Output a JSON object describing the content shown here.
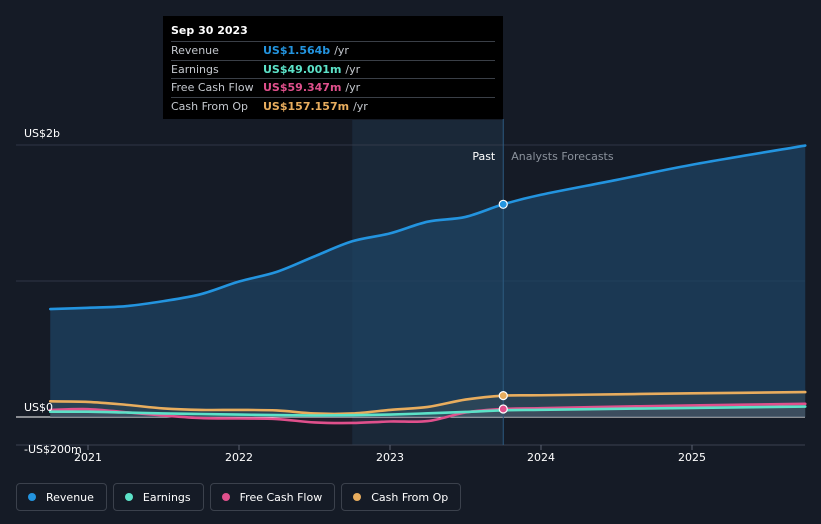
{
  "tooltip": {
    "date": "Sep 30 2023",
    "rows": [
      {
        "label": "Revenue",
        "value": "US$1.564b",
        "unit": "/yr",
        "color": "#2394df"
      },
      {
        "label": "Earnings",
        "value": "US$49.001m",
        "unit": "/yr",
        "color": "#5ce2c8"
      },
      {
        "label": "Free Cash Flow",
        "value": "US$59.347m",
        "unit": "/yr",
        "color": "#e0508c"
      },
      {
        "label": "Cash From Op",
        "value": "US$157.157m",
        "unit": "/yr",
        "color": "#e8ad5e"
      }
    ]
  },
  "regions": {
    "past": "Past",
    "forecast": "Analysts Forecasts"
  },
  "legend": [
    {
      "label": "Revenue",
      "color": "#2394df"
    },
    {
      "label": "Earnings",
      "color": "#5ce2c8"
    },
    {
      "label": "Free Cash Flow",
      "color": "#e0508c"
    },
    {
      "label": "Cash From Op",
      "color": "#e8ad5e"
    }
  ],
  "chart_data": {
    "type": "line",
    "ylim": [
      -200,
      2000
    ],
    "y_ticks": [
      {
        "value": 2000,
        "label": "US$2b"
      },
      {
        "value": 0,
        "label": "US$0"
      },
      {
        "value": -200,
        "label": "-US$200m"
      }
    ],
    "x_ticks": [
      {
        "value": 2021,
        "label": "2021"
      },
      {
        "value": 2022,
        "label": "2022"
      },
      {
        "value": 2023,
        "label": "2023"
      },
      {
        "value": 2024,
        "label": "2024"
      },
      {
        "value": 2025,
        "label": "2025"
      }
    ],
    "xlim": [
      2020.5,
      2025.75
    ],
    "past_region_start": 2022.75,
    "divider": 2023.75,
    "series": [
      {
        "name": "Revenue",
        "color": "#2394df",
        "points": [
          [
            2020.75,
            794
          ],
          [
            2021.0,
            803
          ],
          [
            2021.25,
            815
          ],
          [
            2021.5,
            852
          ],
          [
            2021.75,
            904
          ],
          [
            2022.0,
            996
          ],
          [
            2022.25,
            1067
          ],
          [
            2022.5,
            1181
          ],
          [
            2022.75,
            1292
          ],
          [
            2023.0,
            1350
          ],
          [
            2023.25,
            1436
          ],
          [
            2023.5,
            1471
          ],
          [
            2023.75,
            1564
          ],
          [
            2024.0,
            1634
          ],
          [
            2024.5,
            1743
          ],
          [
            2025.0,
            1855
          ],
          [
            2025.75,
            1996
          ]
        ]
      },
      {
        "name": "Earnings",
        "color": "#5ce2c8",
        "points": [
          [
            2020.75,
            39
          ],
          [
            2021.0,
            39
          ],
          [
            2021.25,
            33
          ],
          [
            2021.5,
            26
          ],
          [
            2021.75,
            22
          ],
          [
            2022.0,
            18
          ],
          [
            2022.25,
            14
          ],
          [
            2022.5,
            11
          ],
          [
            2022.75,
            13
          ],
          [
            2023.0,
            18
          ],
          [
            2023.25,
            27
          ],
          [
            2023.5,
            37
          ],
          [
            2023.75,
            49
          ],
          [
            2024.0,
            53
          ],
          [
            2024.5,
            60
          ],
          [
            2025.0,
            67
          ],
          [
            2025.75,
            77
          ]
        ]
      },
      {
        "name": "Free Cash Flow",
        "color": "#e0508c",
        "points": [
          [
            2020.75,
            52
          ],
          [
            2021.0,
            58
          ],
          [
            2021.25,
            35
          ],
          [
            2021.5,
            11
          ],
          [
            2021.75,
            -8
          ],
          [
            2022.0,
            -11
          ],
          [
            2022.25,
            -15
          ],
          [
            2022.5,
            -40
          ],
          [
            2022.75,
            -44
          ],
          [
            2023.0,
            -33
          ],
          [
            2023.25,
            -30
          ],
          [
            2023.5,
            33
          ],
          [
            2023.75,
            59
          ],
          [
            2024.0,
            65
          ],
          [
            2024.5,
            76
          ],
          [
            2025.0,
            85
          ],
          [
            2025.75,
            97
          ]
        ]
      },
      {
        "name": "Cash From Op",
        "color": "#e8ad5e",
        "points": [
          [
            2020.75,
            115
          ],
          [
            2021.0,
            111
          ],
          [
            2021.25,
            90
          ],
          [
            2021.5,
            63
          ],
          [
            2021.75,
            52
          ],
          [
            2022.0,
            52
          ],
          [
            2022.25,
            48
          ],
          [
            2022.5,
            26
          ],
          [
            2022.75,
            26
          ],
          [
            2023.0,
            52
          ],
          [
            2023.25,
            74
          ],
          [
            2023.5,
            128
          ],
          [
            2023.75,
            157
          ],
          [
            2024.0,
            160
          ],
          [
            2024.5,
            167
          ],
          [
            2025.0,
            174
          ],
          [
            2025.75,
            183
          ]
        ]
      }
    ]
  }
}
